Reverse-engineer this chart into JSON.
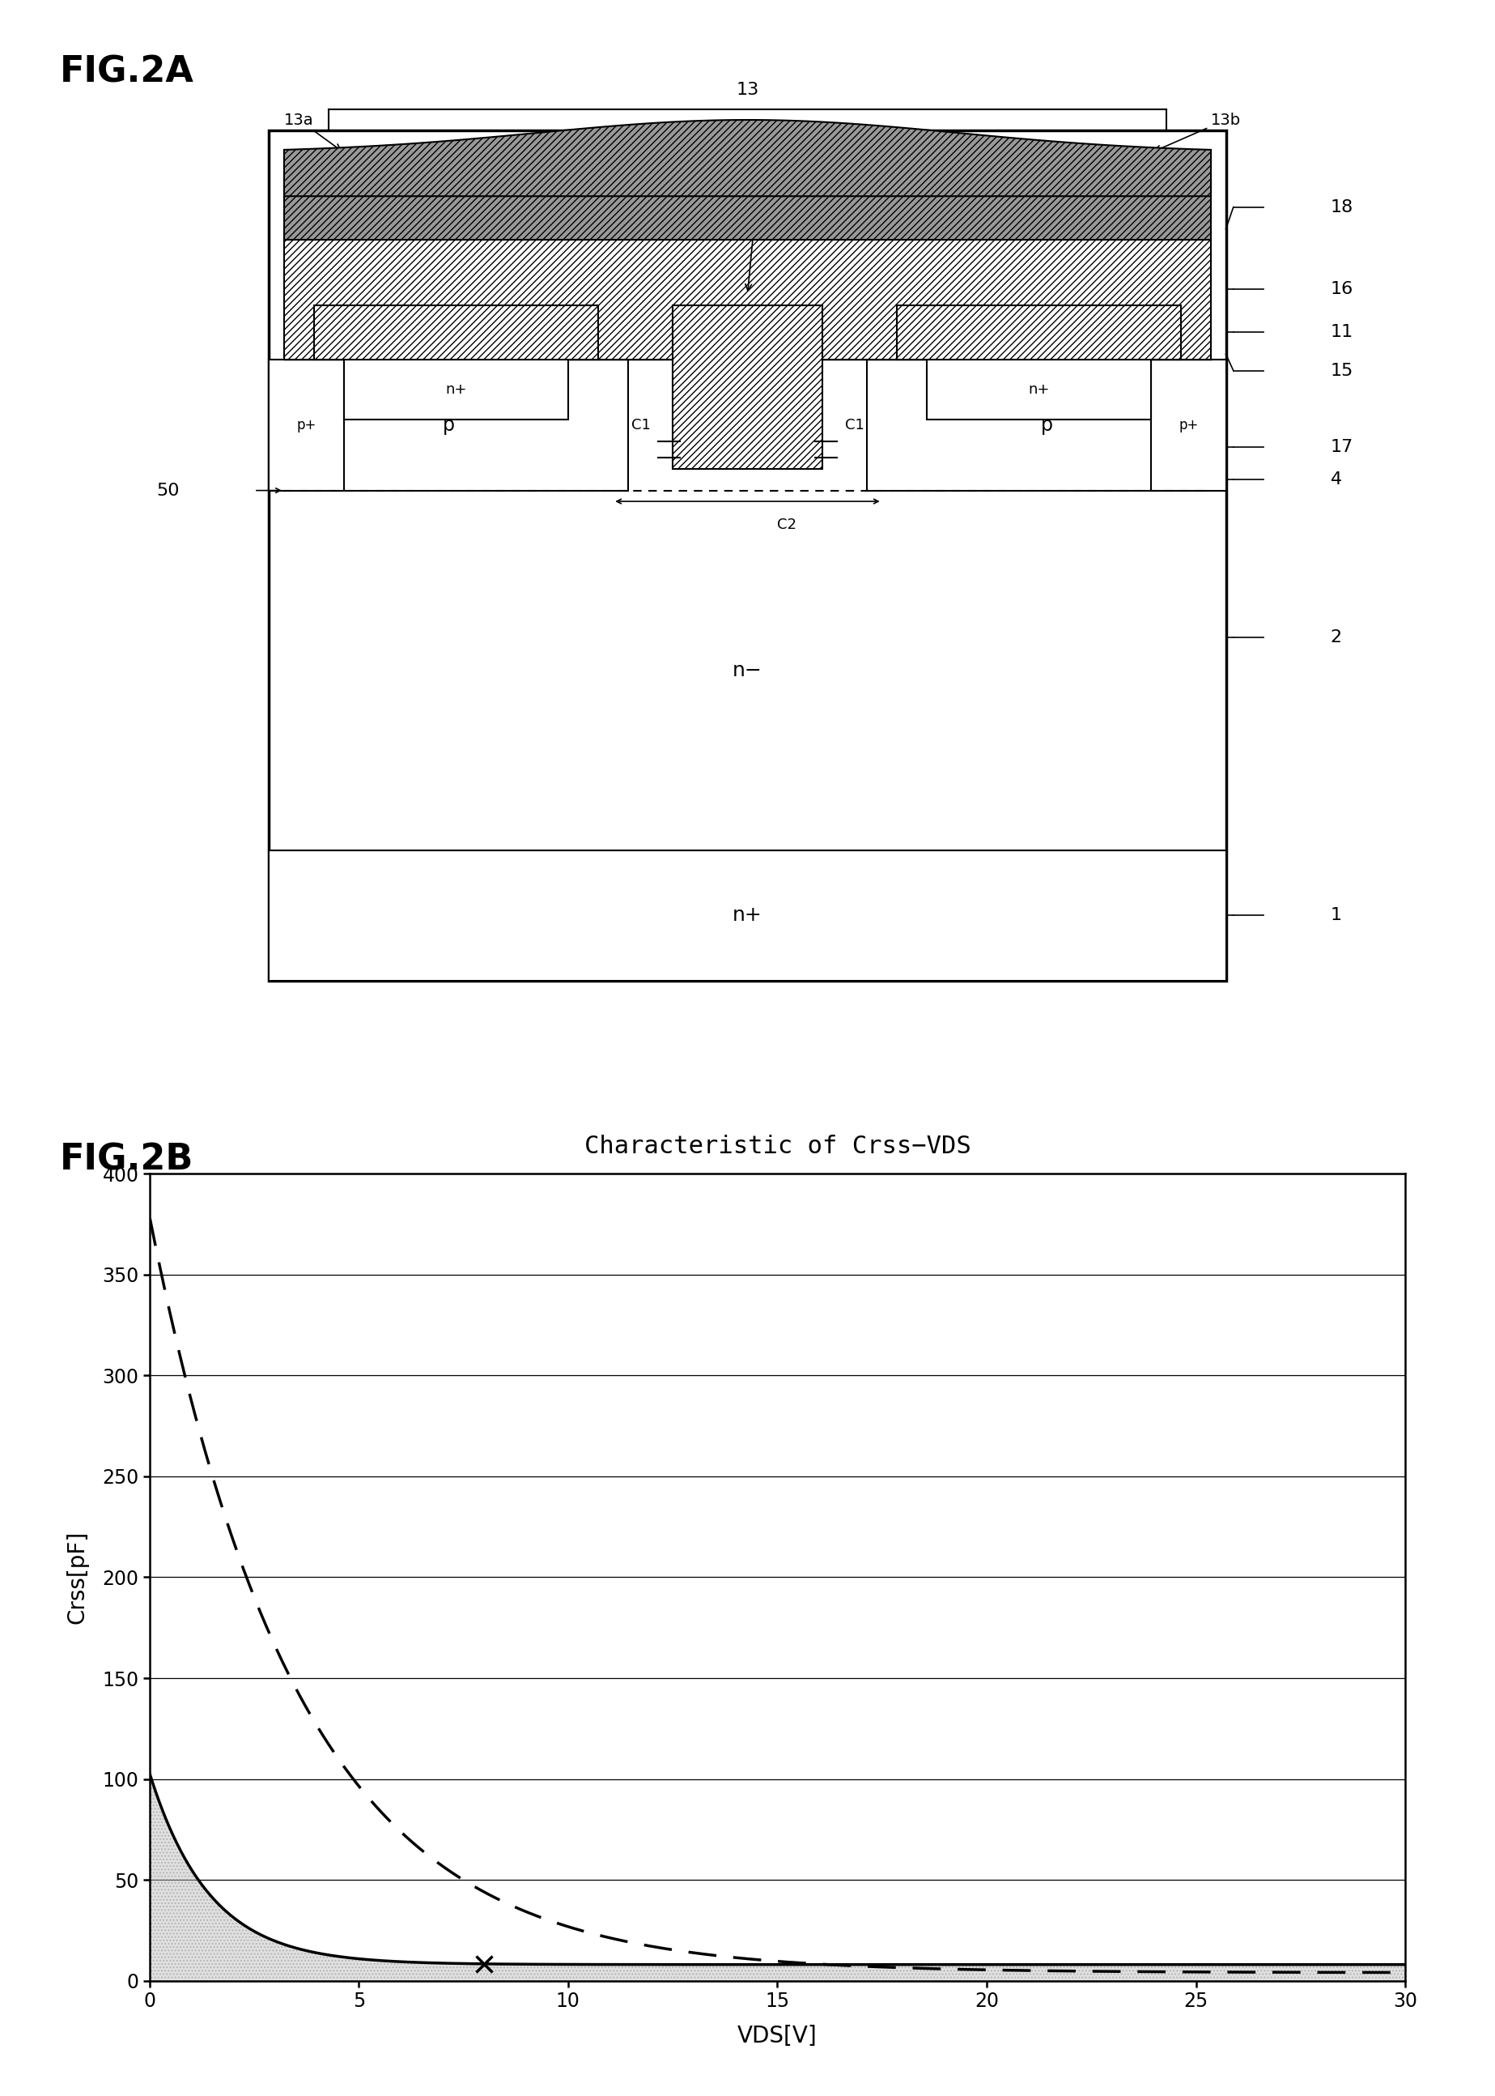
{
  "fig2a_title": "FIG.2A",
  "fig2b_title": "FIG.2B",
  "chart_title": "Characteristic of Crss−VDS",
  "xlabel": "VDS[V]",
  "ylabel": "Crss[pF]",
  "xlim": [
    0,
    30
  ],
  "ylim": [
    0,
    400
  ],
  "xticks": [
    0,
    5,
    10,
    15,
    20,
    25,
    30
  ],
  "yticks": [
    0,
    50,
    100,
    150,
    200,
    250,
    300,
    350,
    400
  ],
  "bg_color": "#ffffff",
  "line_color": "#000000",
  "dashed_line_color": "#000000",
  "fill_color": "#bbbbbb"
}
